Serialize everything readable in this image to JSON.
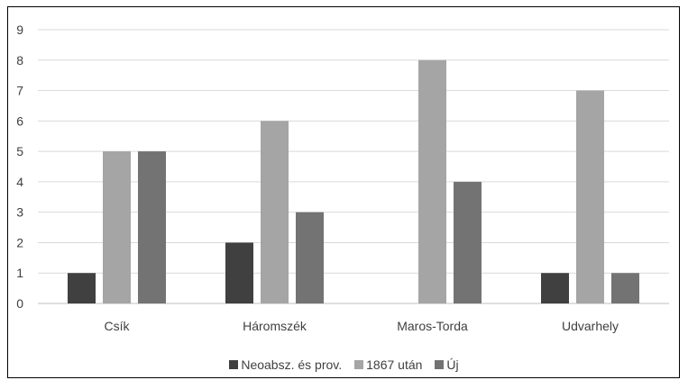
{
  "chart_data": {
    "type": "bar",
    "categories": [
      "Csík",
      "Háromszék",
      "Maros-Torda",
      "Udvarhely"
    ],
    "series": [
      {
        "name": "Neoabsz. és prov.",
        "values": [
          1,
          2,
          0,
          1
        ],
        "color": "#404040"
      },
      {
        "name": "1867 után",
        "values": [
          5,
          6,
          8,
          7
        ],
        "color": "#a5a5a5"
      },
      {
        "name": "Új",
        "values": [
          5,
          3,
          4,
          1
        ],
        "color": "#737373"
      }
    ],
    "yticks": [
      "0",
      "1",
      "2",
      "3",
      "4",
      "5",
      "6",
      "7",
      "8",
      "9"
    ],
    "ylim": [
      0,
      9
    ],
    "grid": true,
    "legend_position": "bottom"
  }
}
